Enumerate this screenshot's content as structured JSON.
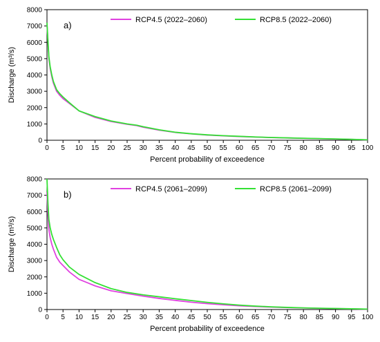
{
  "chart_data": [
    {
      "type": "line",
      "panel_label": "a)",
      "xlabel": "Percent probability of exceedence",
      "ylabel": "Discharge (m³/s)",
      "xlim": [
        0,
        100
      ],
      "ylim": [
        0,
        8000
      ],
      "xticks": [
        "0",
        "5",
        "10",
        "15",
        "20",
        "25",
        "30",
        "35",
        "40",
        "45",
        "50",
        "55",
        "60",
        "65",
        "70",
        "75",
        "80",
        "85",
        "90",
        "95",
        "100"
      ],
      "yticks": [
        "0",
        "1000",
        "2000",
        "3000",
        "4000",
        "5000",
        "6000",
        "7000",
        "8000"
      ],
      "legend_position": "top-center",
      "series": [
        {
          "name": "RCP4.5 (2022–2060)",
          "color": "#e040e0",
          "x": [
            0,
            0.3,
            0.6,
            1,
            1.5,
            2,
            3,
            4,
            5,
            7,
            10,
            15,
            20,
            25,
            28,
            30,
            35,
            40,
            45,
            50,
            55,
            60,
            65,
            70,
            75,
            80,
            85,
            90,
            95,
            100
          ],
          "y": [
            7100,
            6000,
            5000,
            4400,
            3900,
            3500,
            3000,
            2750,
            2550,
            2250,
            1800,
            1400,
            1150,
            980,
            900,
            800,
            620,
            480,
            390,
            320,
            270,
            230,
            195,
            165,
            140,
            115,
            95,
            75,
            50,
            20
          ]
        },
        {
          "name": "RCP8.5 (2022–2060)",
          "color": "#33e033",
          "x": [
            0,
            0.3,
            0.6,
            1,
            1.5,
            2,
            3,
            4,
            5,
            7,
            10,
            15,
            20,
            25,
            28,
            30,
            35,
            40,
            45,
            50,
            55,
            60,
            65,
            70,
            75,
            80,
            85,
            90,
            95,
            100
          ],
          "y": [
            7200,
            6100,
            5100,
            4500,
            4000,
            3600,
            3100,
            2850,
            2650,
            2300,
            1800,
            1450,
            1180,
            1000,
            920,
            830,
            640,
            490,
            400,
            330,
            280,
            240,
            200,
            170,
            145,
            120,
            100,
            80,
            55,
            25
          ]
        }
      ]
    },
    {
      "type": "line",
      "panel_label": "b)",
      "xlabel": "Percent probability of exceedence",
      "ylabel": "Discharge (m³/s)",
      "xlim": [
        0,
        100
      ],
      "ylim": [
        0,
        8000
      ],
      "xticks": [
        "0",
        "5",
        "10",
        "15",
        "20",
        "25",
        "30",
        "35",
        "40",
        "45",
        "50",
        "55",
        "60",
        "65",
        "70",
        "75",
        "80",
        "85",
        "90",
        "95",
        "100"
      ],
      "yticks": [
        "0",
        "1000",
        "2000",
        "3000",
        "4000",
        "5000",
        "6000",
        "7000",
        "8000"
      ],
      "legend_position": "top-center",
      "series": [
        {
          "name": "RCP4.5 (2061–2099)",
          "color": "#e040e0",
          "x": [
            0,
            0.3,
            0.6,
            1,
            1.5,
            2,
            3,
            4,
            5,
            7,
            10,
            15,
            20,
            25,
            30,
            35,
            40,
            45,
            50,
            55,
            60,
            65,
            70,
            75,
            80,
            85,
            90,
            95,
            100
          ],
          "y": [
            7200,
            5800,
            4900,
            4400,
            4000,
            3700,
            3200,
            2900,
            2700,
            2300,
            1850,
            1450,
            1150,
            980,
            820,
            680,
            560,
            450,
            360,
            290,
            230,
            185,
            150,
            120,
            95,
            75,
            55,
            40,
            20
          ]
        },
        {
          "name": "RCP8.5 (2061–2099)",
          "color": "#33e033",
          "x": [
            0,
            0.3,
            0.6,
            1,
            1.5,
            2,
            3,
            4,
            5,
            7,
            10,
            15,
            20,
            25,
            30,
            35,
            40,
            45,
            50,
            55,
            60,
            65,
            70,
            75,
            80,
            85,
            90,
            95,
            100
          ],
          "y": [
            8000,
            6500,
            5500,
            5000,
            4600,
            4300,
            3800,
            3350,
            3050,
            2600,
            2150,
            1650,
            1280,
            1050,
            900,
            780,
            660,
            550,
            440,
            350,
            270,
            210,
            165,
            130,
            100,
            80,
            60,
            45,
            25
          ]
        }
      ]
    }
  ]
}
